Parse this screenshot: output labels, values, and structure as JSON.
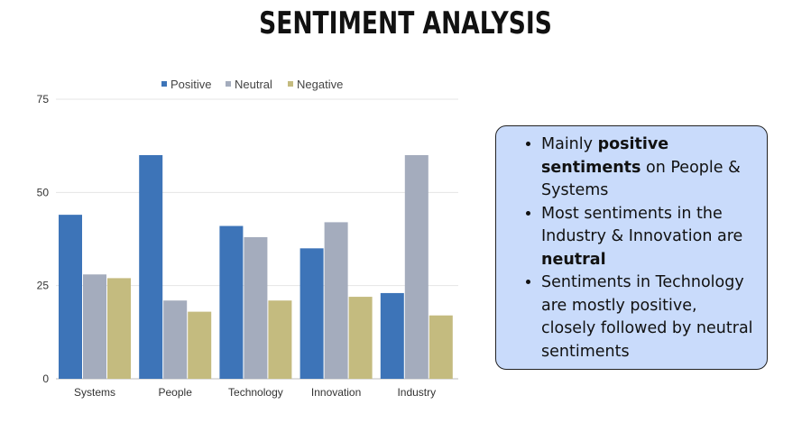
{
  "page": {
    "title": "SENTIMENT ANALYSIS"
  },
  "chart_data": {
    "type": "bar",
    "categories": [
      "Systems",
      "People",
      "Technology",
      "Innovation",
      "Industry"
    ],
    "series": [
      {
        "name": "Positive",
        "color": "#3d74b8",
        "values": [
          44,
          60,
          41,
          35,
          23
        ]
      },
      {
        "name": "Neutral",
        "color": "#a4acbd",
        "values": [
          28,
          21,
          38,
          42,
          60
        ]
      },
      {
        "name": "Negative",
        "color": "#c4bb7f",
        "values": [
          27,
          18,
          21,
          22,
          17
        ]
      }
    ],
    "y_ticks": [
      0,
      25,
      50,
      75
    ],
    "ylim": [
      0,
      75
    ],
    "grid": true,
    "legend_position": "top"
  },
  "callout": {
    "bullets": [
      {
        "pre": "Mainly ",
        "bold": "positive sentiments",
        "post": " on People & Systems"
      },
      {
        "pre": "Most sentiments in the Industry  & Innovation are ",
        "bold": "neutral",
        "post": ""
      },
      {
        "pre": "Sentiments in Technology are mostly positive, closely followed by neutral sentiments",
        "bold": "",
        "post": ""
      }
    ]
  }
}
